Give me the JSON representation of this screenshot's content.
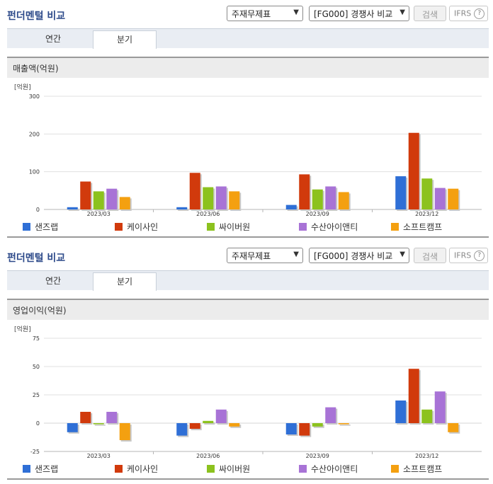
{
  "panels": [
    {
      "title": "펀더멘털 비교",
      "select1": "주재무제표",
      "select2": "[FG000] 경쟁사 비교",
      "search_button": "검색",
      "ifrs_button": "IFRS",
      "help_icon": "?",
      "tabs": [
        {
          "label": "연간"
        },
        {
          "label": "분기"
        }
      ],
      "active_tab": 1,
      "section_title": "매출액(억원)"
    },
    {
      "title": "펀더멘털 비교",
      "select1": "주재무제표",
      "select2": "[FG000] 경쟁사 비교",
      "search_button": "검색",
      "ifrs_button": "IFRS",
      "help_icon": "?",
      "tabs": [
        {
          "label": "연간"
        },
        {
          "label": "분기"
        }
      ],
      "active_tab": 1,
      "section_title": "영업이익(억원)"
    }
  ],
  "chart_data": [
    {
      "type": "bar",
      "unit": "[억원]",
      "categories": [
        "2023/03",
        "2023/06",
        "2023/09",
        "2023/12"
      ],
      "ylim": [
        0,
        300
      ],
      "yticks": [
        "0",
        "100",
        "200",
        "300"
      ],
      "series": [
        {
          "name": "샌즈랩",
          "color": "#2f6fd6",
          "values": [
            6,
            6,
            12,
            88
          ]
        },
        {
          "name": "케이사인",
          "color": "#d13a0c",
          "values": [
            74,
            97,
            93,
            203
          ]
        },
        {
          "name": "싸이버원",
          "color": "#8cc21e",
          "values": [
            48,
            59,
            53,
            82
          ]
        },
        {
          "name": "수산아이앤티",
          "color": "#a873d6",
          "values": [
            55,
            61,
            61,
            57
          ]
        },
        {
          "name": "소프트캠프",
          "color": "#f4a010",
          "values": [
            33,
            48,
            46,
            55
          ]
        }
      ],
      "grid": true,
      "legend": "bottom"
    },
    {
      "type": "bar",
      "unit": "[억원]",
      "categories": [
        "2023/03",
        "2023/06",
        "2023/09",
        "2023/12"
      ],
      "ylim": [
        -25,
        75
      ],
      "yticks": [
        "-25",
        "0",
        "25",
        "50",
        "75"
      ],
      "series": [
        {
          "name": "샌즈랩",
          "color": "#2f6fd6",
          "values": [
            -8,
            -11,
            -10,
            20
          ]
        },
        {
          "name": "케이사인",
          "color": "#d13a0c",
          "values": [
            10,
            -5,
            -11,
            48
          ]
        },
        {
          "name": "싸이버원",
          "color": "#8cc21e",
          "values": [
            -1,
            2,
            -3,
            12
          ]
        },
        {
          "name": "수산아이앤티",
          "color": "#a873d6",
          "values": [
            10,
            12,
            14,
            28
          ]
        },
        {
          "name": "소프트캠프",
          "color": "#f4a010",
          "values": [
            -15,
            -3,
            -1,
            -8
          ]
        }
      ],
      "grid": true,
      "legend": "bottom"
    }
  ]
}
